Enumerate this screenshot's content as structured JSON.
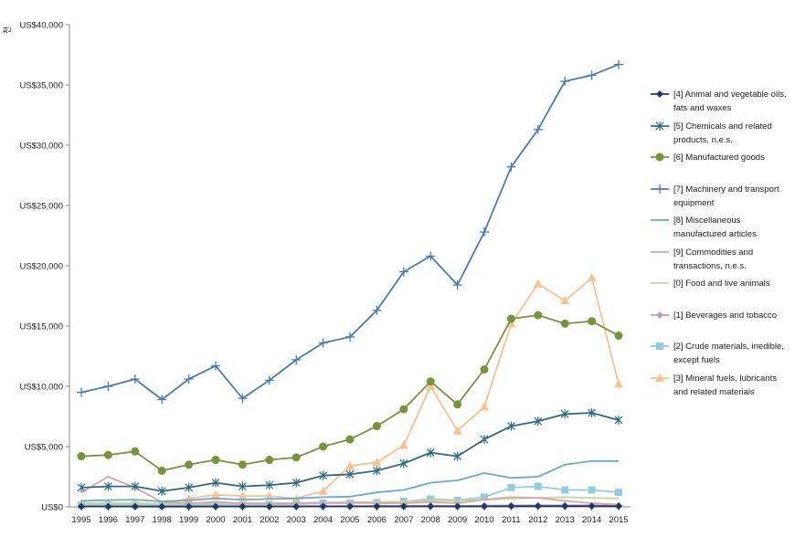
{
  "chart_data": {
    "type": "line",
    "title": "",
    "xlabel": "",
    "ylabel": "",
    "y_unit_glyph": "천",
    "ylim": [
      0,
      40000
    ],
    "y_ticks": [
      0,
      5000,
      10000,
      15000,
      20000,
      25000,
      30000,
      35000,
      40000
    ],
    "y_tick_labels": [
      "US$0",
      "US$5,000",
      "US$10,000",
      "US$15,000",
      "US$20,000",
      "US$25,000",
      "US$30,000",
      "US$35,000",
      "US$40,000"
    ],
    "grid": false,
    "legend_position": "right",
    "categories": [
      "1995",
      "1996",
      "1997",
      "1998",
      "1999",
      "2000",
      "2001",
      "2002",
      "2003",
      "2004",
      "2005",
      "2006",
      "2007",
      "2008",
      "2009",
      "2010",
      "2011",
      "2012",
      "2013",
      "2014",
      "2015"
    ],
    "series": [
      {
        "name": "[4] Animal and vegetable oils, fats and waxes",
        "color": "#1f3864",
        "marker": "diamond",
        "values": [
          30,
          30,
          30,
          25,
          25,
          30,
          30,
          30,
          30,
          35,
          35,
          40,
          40,
          45,
          40,
          45,
          55,
          60,
          60,
          60,
          55
        ]
      },
      {
        "name": "[5] Chemicals and related products, n.e.s.",
        "color": "#2e6b7f",
        "marker": "asterisk",
        "values": [
          1600,
          1700,
          1700,
          1300,
          1600,
          2000,
          1700,
          1800,
          2000,
          2600,
          2700,
          3000,
          3600,
          4500,
          4200,
          5600,
          6700,
          7100,
          7700,
          7800,
          7200
        ]
      },
      {
        "name": "[6] Manufactured goods",
        "color": "#77933c",
        "marker": "circle",
        "values": [
          4200,
          4300,
          4600,
          3000,
          3500,
          3900,
          3500,
          3900,
          4100,
          5000,
          5600,
          6700,
          8100,
          10400,
          8500,
          11400,
          15600,
          15900,
          15200,
          15400,
          14200
        ]
      },
      {
        "name": "[7] Machinery and transport equipment",
        "color": "#4a7ab5",
        "marker": "plus",
        "values": [
          9500,
          10000,
          10600,
          8900,
          10600,
          11700,
          9000,
          10500,
          12200,
          13600,
          14100,
          16300,
          19500,
          20800,
          18400,
          22800,
          28200,
          31300,
          35300,
          35800,
          36700
        ]
      },
      {
        "name": "[8] Miscellaneous manufactured articles",
        "color": "#66aad4",
        "marker": "none",
        "values": [
          500,
          550,
          600,
          450,
          550,
          700,
          600,
          650,
          700,
          800,
          850,
          1200,
          1400,
          2000,
          2200,
          2800,
          2400,
          2500,
          3500,
          3800,
          3800
        ]
      },
      {
        "name": "[9] Commodities and transactions, n.e.s.",
        "color": "#e0a2a0",
        "marker": "none",
        "values": [
          1200,
          2500,
          1600,
          400,
          300,
          400,
          300,
          300,
          300,
          350,
          350,
          300,
          300,
          400,
          300,
          600,
          800,
          750,
          500,
          300,
          200
        ]
      },
      {
        "name": "[0] Food and live animals",
        "color": "#c5d69b",
        "marker": "none",
        "values": [
          300,
          300,
          320,
          250,
          280,
          300,
          280,
          300,
          320,
          350,
          380,
          400,
          450,
          550,
          500,
          600,
          700,
          750,
          800,
          750,
          700
        ]
      },
      {
        "name": "[1] Beverages and tobacco",
        "color": "#b3a2c7",
        "marker": "diamond",
        "values": [
          60,
          60,
          60,
          50,
          60,
          60,
          60,
          60,
          60,
          70,
          70,
          80,
          80,
          90,
          80,
          100,
          120,
          130,
          130,
          130,
          120
        ]
      },
      {
        "name": "[2] Crude materials, inedible, except fuels",
        "color": "#93cddd",
        "marker": "square",
        "values": [
          150,
          150,
          150,
          120,
          150,
          200,
          180,
          200,
          220,
          300,
          300,
          350,
          450,
          650,
          550,
          800,
          1600,
          1700,
          1400,
          1400,
          1200
        ]
      },
      {
        "name": "[3] Mineral fuels, lubricants and related materials",
        "color": "#fac090",
        "marker": "triangle",
        "values": [
          300,
          300,
          300,
          200,
          700,
          1000,
          900,
          900,
          700,
          1300,
          3400,
          3700,
          5100,
          10000,
          6300,
          8300,
          15200,
          18500,
          17100,
          19000,
          10200
        ]
      }
    ]
  }
}
